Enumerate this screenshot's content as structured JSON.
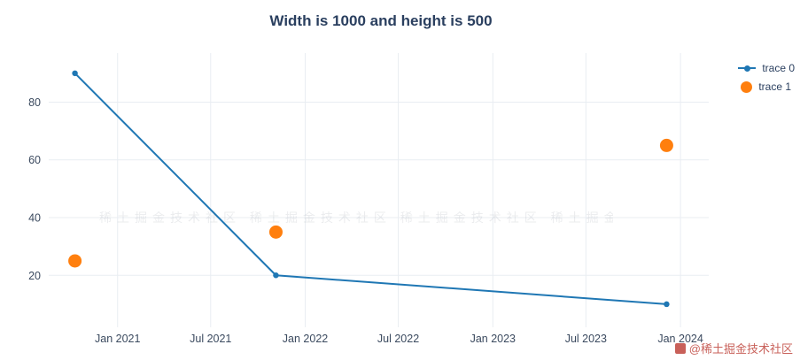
{
  "title": "Width is 1000 and height is 500",
  "legend": [
    {
      "label": "trace 0",
      "color": "#1f77b4",
      "symbol": "line-with-dot"
    },
    {
      "label": "trace 1",
      "color": "#ff7f0e",
      "symbol": "dot"
    }
  ],
  "watermark": "@稀土掘金技术社区",
  "watermark_band": "稀土掘金技术社区 稀土掘金技术社区 稀土掘金技术社区 稀土掘金技术社区",
  "chart_data": {
    "type": "line",
    "title": "Width is 1000 and height is 500",
    "xlabel": "",
    "ylabel": "",
    "grid": true,
    "grid_color": "#e9edf2",
    "tick_color": "#3b4a5f",
    "legend_position": "right",
    "x_range": [
      "2020-08-20",
      "2024-02-25"
    ],
    "y_range": [
      2,
      97
    ],
    "y_ticks": [
      20,
      40,
      60,
      80
    ],
    "x_ticks": [
      {
        "label": "Jan 2021",
        "date": "2021-01-01"
      },
      {
        "label": "Jul 2021",
        "date": "2021-07-01"
      },
      {
        "label": "Jan 2022",
        "date": "2022-01-01"
      },
      {
        "label": "Jul 2022",
        "date": "2022-07-01"
      },
      {
        "label": "Jan 2023",
        "date": "2023-01-01"
      },
      {
        "label": "Jul 2023",
        "date": "2023-07-01"
      },
      {
        "label": "Jan 2024",
        "date": "2024-01-01"
      }
    ],
    "series": [
      {
        "name": "trace 0",
        "mode": "lines+markers",
        "color": "#1f77b4",
        "marker_size": 6.5,
        "x": [
          "2020-10-10",
          "2021-11-05",
          "2023-12-05"
        ],
        "y": [
          90,
          20,
          10
        ]
      },
      {
        "name": "trace 1",
        "mode": "markers",
        "color": "#ff7f0e",
        "marker_size": 15,
        "x": [
          "2020-10-10",
          "2021-11-05",
          "2023-12-05"
        ],
        "y": [
          25,
          35,
          65
        ]
      }
    ]
  }
}
